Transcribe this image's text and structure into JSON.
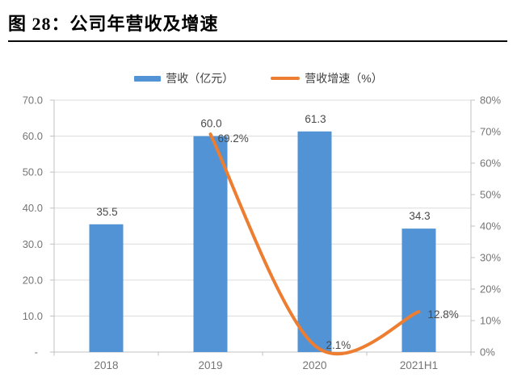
{
  "figure": {
    "title": "图 28：公司年营收及增速"
  },
  "legend": {
    "items": [
      {
        "label": "营收（亿元）",
        "swatch": "bar",
        "color": "#5193D4"
      },
      {
        "label": "营收增速（%）",
        "swatch": "line",
        "color": "#ED7D31"
      }
    ]
  },
  "chart_data": {
    "type": "combo",
    "categories": [
      "2018",
      "2019",
      "2020",
      "2021H1"
    ],
    "series": [
      {
        "name": "营收（亿元）",
        "type": "bar",
        "axis": "left",
        "color": "#5193D4",
        "values": [
          35.5,
          60.0,
          61.3,
          34.3
        ],
        "labels": [
          "35.5",
          "60.0",
          "61.3",
          "34.3"
        ]
      },
      {
        "name": "营收增速（%）",
        "type": "line",
        "axis": "right",
        "color": "#ED7D31",
        "smooth": true,
        "values": [
          null,
          69.2,
          2.1,
          12.8
        ],
        "labels": [
          null,
          "69.2%",
          "2.1%",
          "12.8%"
        ]
      }
    ],
    "left_axis": {
      "min": 0,
      "max": 70,
      "step": 10,
      "tick_labels": [
        "-",
        "10.0",
        "20.0",
        "30.0",
        "40.0",
        "50.0",
        "60.0",
        "70.0"
      ]
    },
    "right_axis": {
      "min": 0,
      "max": 80,
      "step": 10,
      "tick_labels": [
        "0%",
        "10%",
        "20%",
        "30%",
        "40%",
        "50%",
        "60%",
        "70%",
        "80%"
      ]
    },
    "grid": true,
    "legend_position": "top",
    "colors": {
      "grid": "#DCDCDC",
      "axis_line": "#C0C0C0",
      "axis_text": "#757575",
      "data_label": "#4A4A4A"
    }
  }
}
